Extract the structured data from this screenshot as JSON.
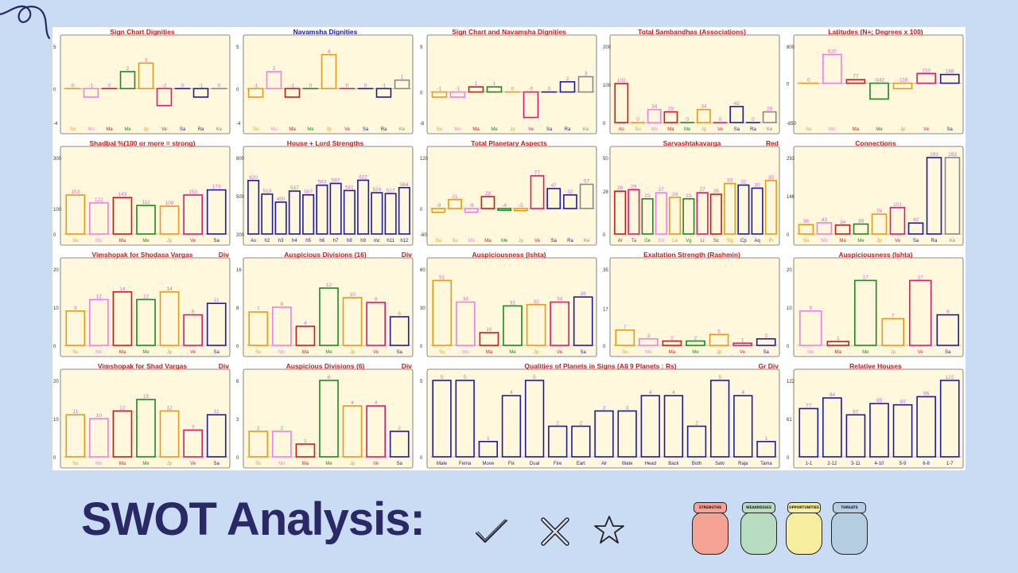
{
  "slide": {
    "title": "SWOT Analysis:",
    "icons": [
      "check-icon",
      "cross-icon",
      "star-icon",
      "doodle-curl-icon"
    ]
  },
  "jars": [
    {
      "label": "STRENGTHS",
      "color": "#f4a294"
    },
    {
      "label": "WEAKNESSES",
      "color": "#b8dcc0"
    },
    {
      "label": "OPPORTUNITIES",
      "color": "#f6ee9e"
    },
    {
      "label": "THREATS",
      "color": "#b4cde0"
    }
  ],
  "colors": {
    "panel_bg": "#fff8dc",
    "title_red": "#cc1a1a",
    "title_blue": "#1a1a9e",
    "page_bg": "#c9dcf4"
  },
  "chart_data": [
    {
      "type": "bar",
      "title": "Sign Chart Dignities",
      "yticks": [
        "5",
        "0",
        "-4"
      ],
      "ylim": [
        -4,
        5
      ],
      "categories": [
        "Su",
        "Mo",
        "Ma",
        "Me",
        "Jp",
        "Ve",
        "Sa",
        "Ra",
        "Ke"
      ],
      "values": [
        0,
        -1,
        0,
        2,
        3,
        -2,
        0,
        -1,
        0
      ],
      "labels": [
        "0",
        "-1",
        "0",
        "2",
        "3",
        "-2",
        "0",
        "-1",
        "0"
      ]
    },
    {
      "type": "bar",
      "title": "Navamsha Dignities",
      "title_color": "blue",
      "yticks": [
        "5",
        "0",
        "-4"
      ],
      "ylim": [
        -4,
        5
      ],
      "categories": [
        "Su",
        "Mo",
        "Ma",
        "Me",
        "Jp",
        "Ve",
        "Sa",
        "Ra",
        "Ke"
      ],
      "values": [
        -1,
        2,
        -1,
        0,
        4,
        0,
        0,
        -1,
        1
      ],
      "labels": [
        "-1",
        "2",
        "-1",
        "0",
        "4",
        "0",
        "0",
        "-1",
        "1"
      ]
    },
    {
      "type": "bar",
      "title": "Sign Chart and Navamsha Dignities",
      "yticks": [
        "9",
        "0",
        "-6"
      ],
      "ylim": [
        -6,
        9
      ],
      "categories": [
        "Su",
        "Mo",
        "Ma",
        "Me",
        "Jp",
        "Ve",
        "Sa",
        "Ra",
        "Ke"
      ],
      "values": [
        -1,
        -1,
        1,
        1,
        0,
        -5,
        0,
        2,
        3
      ],
      "labels": [
        "-1",
        "-1",
        "1",
        "1",
        "0",
        "-5",
        "0",
        "2",
        "3"
      ]
    },
    {
      "type": "bar",
      "title": "Total Sambandhas (Associations)",
      "yticks": [
        "200",
        "100",
        "0"
      ],
      "ylim": [
        0,
        200
      ],
      "categories": [
        "As",
        "Su",
        "Mo",
        "Ma",
        "Me",
        "Jp",
        "Ve",
        "Sa",
        "Ra",
        "Ke"
      ],
      "values": [
        102,
        0,
        34,
        28,
        0,
        34,
        0,
        42,
        0,
        28
      ],
      "labels": [
        "102",
        "0",
        "34",
        "28",
        "0",
        "34",
        "0",
        "42",
        "0",
        "28"
      ]
    },
    {
      "type": "bar",
      "title": "Latitudes (N+; Degrees x 100)",
      "yticks": [
        "800",
        "0",
        "-850"
      ],
      "ylim": [
        -850,
        800
      ],
      "categories": [
        "Su",
        "Mo",
        "Ma",
        "Me",
        "Jp",
        "Ve",
        "Sa"
      ],
      "values": [
        0,
        620,
        77,
        -342,
        -118,
        210,
        188
      ],
      "labels": [
        "0",
        "620",
        "77",
        "-342",
        "-118",
        "210",
        "188"
      ]
    },
    {
      "type": "bar",
      "title": "Shadbal %(100 or more = strong)",
      "yticks": [
        "300",
        "100",
        "0"
      ],
      "ylim": [
        0,
        300
      ],
      "categories": [
        "Su",
        "Mo",
        "Ma",
        "Me",
        "Jp",
        "Ve",
        "Sa"
      ],
      "values": [
        153,
        122,
        143,
        112,
        109,
        153,
        173
      ],
      "labels": [
        "153",
        "122",
        "143",
        "112",
        "109",
        "153",
        "173"
      ]
    },
    {
      "type": "bar",
      "title": "House + Lord Strengths",
      "yticks": [
        "800",
        "500",
        "200"
      ],
      "ylim": [
        200,
        800
      ],
      "categories": [
        "As",
        "h2",
        "h3",
        "h4",
        "h5",
        "h6",
        "h7",
        "h8",
        "h9",
        "mc",
        "h11",
        "h12"
      ],
      "values": [
        620,
        513,
        450,
        537,
        507,
        583,
        597,
        541,
        622,
        524,
        517,
        564
      ],
      "labels": [
        "620",
        "513",
        "450",
        "537",
        "507",
        "583",
        "597",
        "541",
        "622",
        "524",
        "517",
        "564"
      ]
    },
    {
      "type": "bar",
      "title": "Total Planetary Aspects",
      "yticks": [
        "120",
        "0",
        "-60"
      ],
      "ylim": [
        -60,
        120
      ],
      "categories": [
        "Su",
        "Su",
        "Mo",
        "Ma",
        "Me",
        "Jp",
        "Ve",
        "Sa",
        "Ra",
        "Ke"
      ],
      "values": [
        -9,
        21,
        -9,
        28,
        -4,
        -5,
        77,
        47,
        32,
        57
      ],
      "labels": [
        "-9",
        "21",
        "-9",
        "28",
        "-4",
        "-5",
        "77",
        "47",
        "32",
        "57"
      ]
    },
    {
      "type": "bar",
      "title": "Sarvashtakavarga",
      "tag": "Red",
      "yticks": [
        "50",
        "28",
        "0"
      ],
      "ylim": [
        0,
        50
      ],
      "categories": [
        "Ar",
        "Ta",
        "Ge",
        "Cn",
        "Le",
        "Vg",
        "Li",
        "Sc",
        "Sg",
        "Cp",
        "Aq",
        "Pi"
      ],
      "values": [
        28,
        29,
        23,
        27,
        24,
        23,
        27,
        26,
        33,
        32,
        30,
        35
      ],
      "labels": [
        "28",
        "29",
        "23",
        "27",
        "24",
        "23",
        "27",
        "26",
        "33",
        "32",
        "30",
        "35"
      ]
    },
    {
      "type": "bar",
      "title": "Connections",
      "yticks": [
        "293",
        "146",
        "0"
      ],
      "ylim": [
        0,
        293
      ],
      "categories": [
        "Su",
        "Mo",
        "Ma",
        "Me",
        "Jp",
        "Ve",
        "Sa",
        "Ra",
        "Ke"
      ],
      "values": [
        36,
        43,
        34,
        38,
        76,
        101,
        42,
        293,
        293
      ],
      "labels": [
        "36",
        "43",
        "34",
        "38",
        "76",
        "101",
        "42",
        "293",
        "293"
      ]
    },
    {
      "type": "bar",
      "title": "Vimshopak for Shodasa Vargas",
      "tag": "Div",
      "yticks": [
        "20",
        "10",
        "0"
      ],
      "ylim": [
        0,
        20
      ],
      "categories": [
        "Su",
        "Mo",
        "Ma",
        "Me",
        "Jp",
        "Ve",
        "Sa"
      ],
      "values": [
        9,
        12,
        14,
        12,
        14,
        8,
        11
      ],
      "labels": [
        "9",
        "12",
        "14",
        "12",
        "14",
        "8",
        "11"
      ]
    },
    {
      "type": "bar",
      "title": "Auspicious Divisions (16)",
      "tag": "Div",
      "yticks": [
        "16",
        "8",
        "0"
      ],
      "ylim": [
        0,
        16
      ],
      "categories": [
        "Su",
        "Mo",
        "Ma",
        "Me",
        "Jp",
        "Ve",
        "Sa"
      ],
      "values": [
        7,
        8,
        4,
        12,
        10,
        9,
        6
      ],
      "labels": [
        "7",
        "8",
        "4",
        "12",
        "10",
        "9",
        "6"
      ]
    },
    {
      "type": "bar",
      "title": "Auspiciousness (Ishta)",
      "yticks": [
        "60",
        "30",
        "0"
      ],
      "ylim": [
        0,
        60
      ],
      "categories": [
        "Su",
        "Mo",
        "Ma",
        "Me",
        "Jp",
        "Ve",
        "Sa"
      ],
      "values": [
        51,
        34,
        10,
        31,
        32,
        34,
        38
      ],
      "labels": [
        "51",
        "34",
        "10",
        "31",
        "32",
        "34",
        "38"
      ]
    },
    {
      "type": "bar",
      "title": "Exaltation Strength (Rashmin)",
      "yticks": [
        "35",
        "17",
        "0"
      ],
      "ylim": [
        0,
        35
      ],
      "categories": [
        "Su",
        "Mo",
        "Ma",
        "Me",
        "Jp",
        "Ve",
        "Sa"
      ],
      "values": [
        7,
        3,
        2,
        2,
        5,
        1,
        3
      ],
      "labels": [
        "7",
        "3",
        "2",
        "2",
        "5",
        "1",
        "3"
      ]
    },
    {
      "type": "bar",
      "title": "Auspiciousness (Ishta)",
      "yticks": [
        "20",
        "10",
        "0"
      ],
      "ylim": [
        0,
        20
      ],
      "categories": [
        "Mo",
        "Ma",
        "Me",
        "Jp",
        "Ve",
        "Sa"
      ],
      "values": [
        9,
        1,
        17,
        7,
        17,
        8
      ],
      "labels": [
        "9",
        "1",
        "17",
        "7",
        "17",
        "8"
      ]
    },
    {
      "type": "bar",
      "title": "Vimshopak for Shad Vargas",
      "tag": "Div",
      "yticks": [
        "20",
        "10",
        "0"
      ],
      "ylim": [
        0,
        20
      ],
      "categories": [
        "Su",
        "Mo",
        "Ma",
        "Me",
        "Jp",
        "Ve",
        "Sa"
      ],
      "values": [
        11,
        10,
        12,
        15,
        12,
        7,
        11
      ],
      "labels": [
        "11",
        "10",
        "12",
        "15",
        "12",
        "7",
        "11"
      ]
    },
    {
      "type": "bar",
      "title": "Auspicious Divisions (6)",
      "tag": "Div",
      "yticks": [
        "6",
        "3",
        "0"
      ],
      "ylim": [
        0,
        6
      ],
      "categories": [
        "Su",
        "Mo",
        "Ma",
        "Me",
        "Jp",
        "Ve",
        "Sa"
      ],
      "values": [
        2,
        2,
        1,
        6,
        4,
        4,
        2
      ],
      "labels": [
        "2",
        "2",
        "1",
        "6",
        "4",
        "4",
        "2"
      ]
    },
    {
      "type": "bar",
      "title": "Qualities of Planets in Signs (All 9 Planets : Rs)",
      "tag": "Gr Div",
      "yticks": [
        "5",
        "0"
      ],
      "ylim": [
        0,
        5
      ],
      "categories": [
        "Male",
        "Fema",
        "Move",
        "Fix",
        "Dual",
        "Fire",
        "Eart",
        "Air",
        "Wate",
        "Head",
        "Back",
        "Both",
        "Satv",
        "Raja",
        "Tama"
      ],
      "values": [
        5,
        5,
        1,
        4,
        5,
        2,
        2,
        3,
        3,
        4,
        4,
        2,
        5,
        4,
        1
      ],
      "labels": [
        "5",
        "5",
        "1",
        "4",
        "5",
        "2",
        "2",
        "3",
        "3",
        "4",
        "4",
        "2",
        "5",
        "4",
        "1"
      ]
    },
    {
      "type": "bar",
      "title": "Relative Houses",
      "yticks": [
        "122",
        "61",
        "0"
      ],
      "ylim": [
        0,
        122
      ],
      "categories": [
        "1-1",
        "2-12",
        "3-11",
        "4-10",
        "5-9",
        "6-8",
        "1-7"
      ],
      "values": [
        77,
        94,
        67,
        85,
        83,
        96,
        122
      ],
      "labels": [
        "77",
        "94",
        "67",
        "85",
        "83",
        "96",
        "122"
      ]
    }
  ]
}
